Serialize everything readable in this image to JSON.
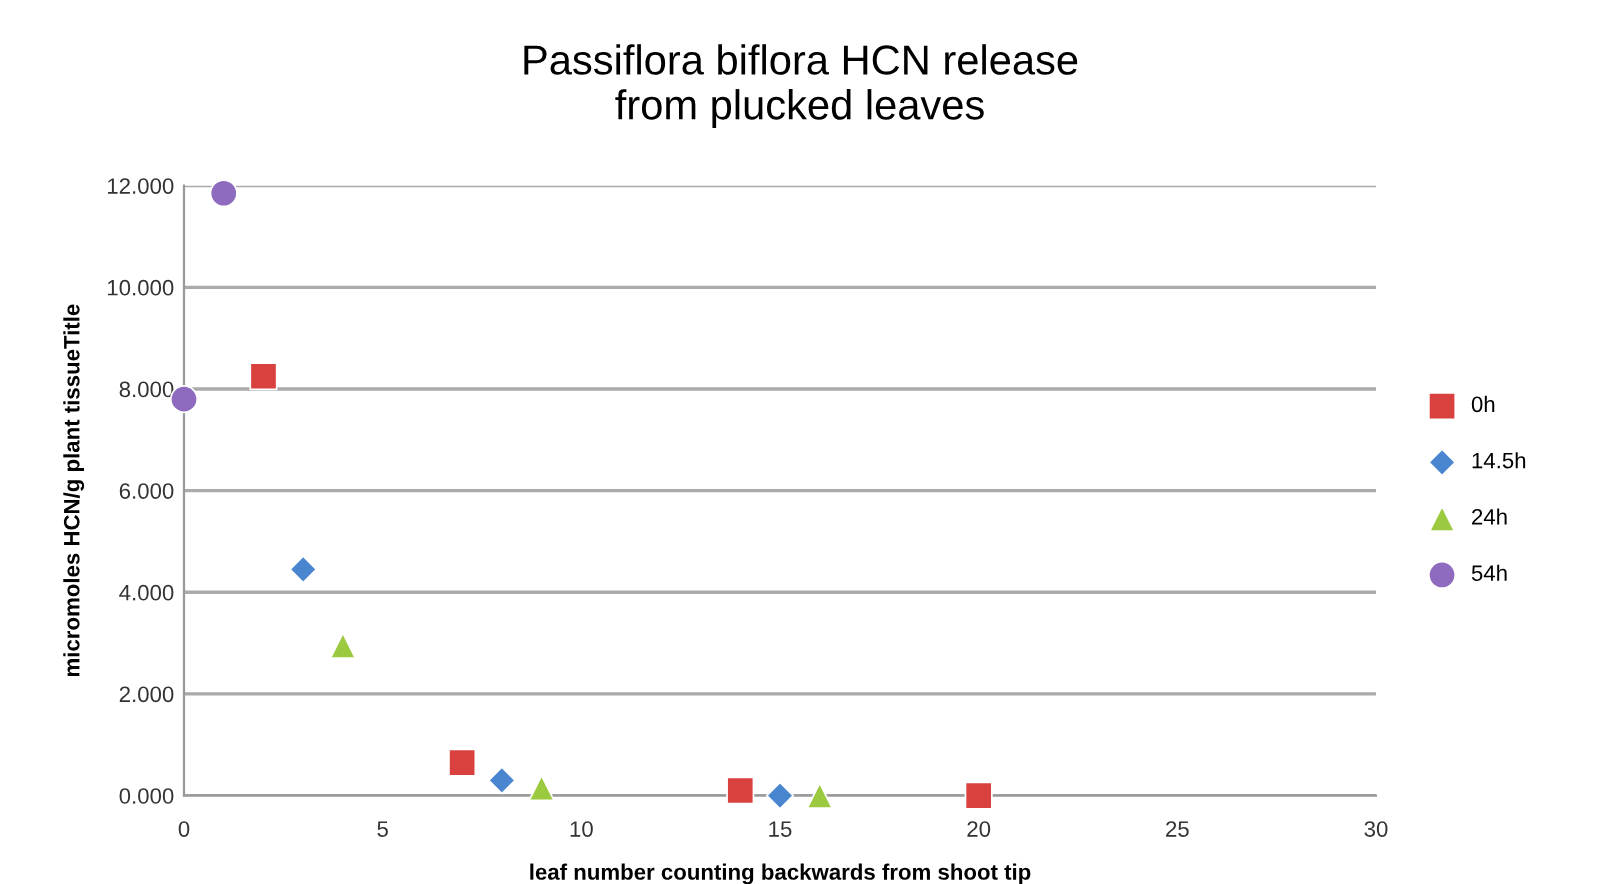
{
  "chart_data": {
    "type": "scatter",
    "title": "Passiflora biflora HCN release\nfrom plucked leaves",
    "xlabel": "leaf number counting backwards from shoot tip",
    "ylabel": "micromoles HCN/g plant tissueTitle",
    "xlim": [
      0,
      30
    ],
    "xticks": [
      0,
      5,
      10,
      15,
      20,
      25,
      30
    ],
    "ylim": [
      0,
      12
    ],
    "yticks": [
      {
        "value": 0,
        "label": "0.000"
      },
      {
        "value": 2,
        "label": "2.000"
      },
      {
        "value": 4,
        "label": "4.000"
      },
      {
        "value": 6,
        "label": "6.000"
      },
      {
        "value": 8,
        "label": "8.000"
      },
      {
        "value": 10,
        "label": "10.000"
      },
      {
        "value": 12,
        "label": "12.000"
      }
    ],
    "grid": "y",
    "legend": "right",
    "series": [
      {
        "name": "0h",
        "color": "#d9413f",
        "marker": "square",
        "x": [
          2,
          7,
          14,
          20
        ],
        "values": [
          8.25,
          0.65,
          0.1,
          0.0
        ]
      },
      {
        "name": "14.5h",
        "color": "#4a86d0",
        "marker": "diamond",
        "x": [
          3,
          8,
          15
        ],
        "values": [
          4.45,
          0.3,
          0.0
        ]
      },
      {
        "name": "24h",
        "color": "#9bc93f",
        "marker": "triangle",
        "x": [
          4,
          9,
          16
        ],
        "values": [
          2.95,
          0.15,
          0.0
        ]
      },
      {
        "name": "54h",
        "color": "#8e6bbf",
        "marker": "circle",
        "x": [
          0,
          1
        ],
        "values": [
          7.8,
          11.85
        ]
      }
    ]
  }
}
